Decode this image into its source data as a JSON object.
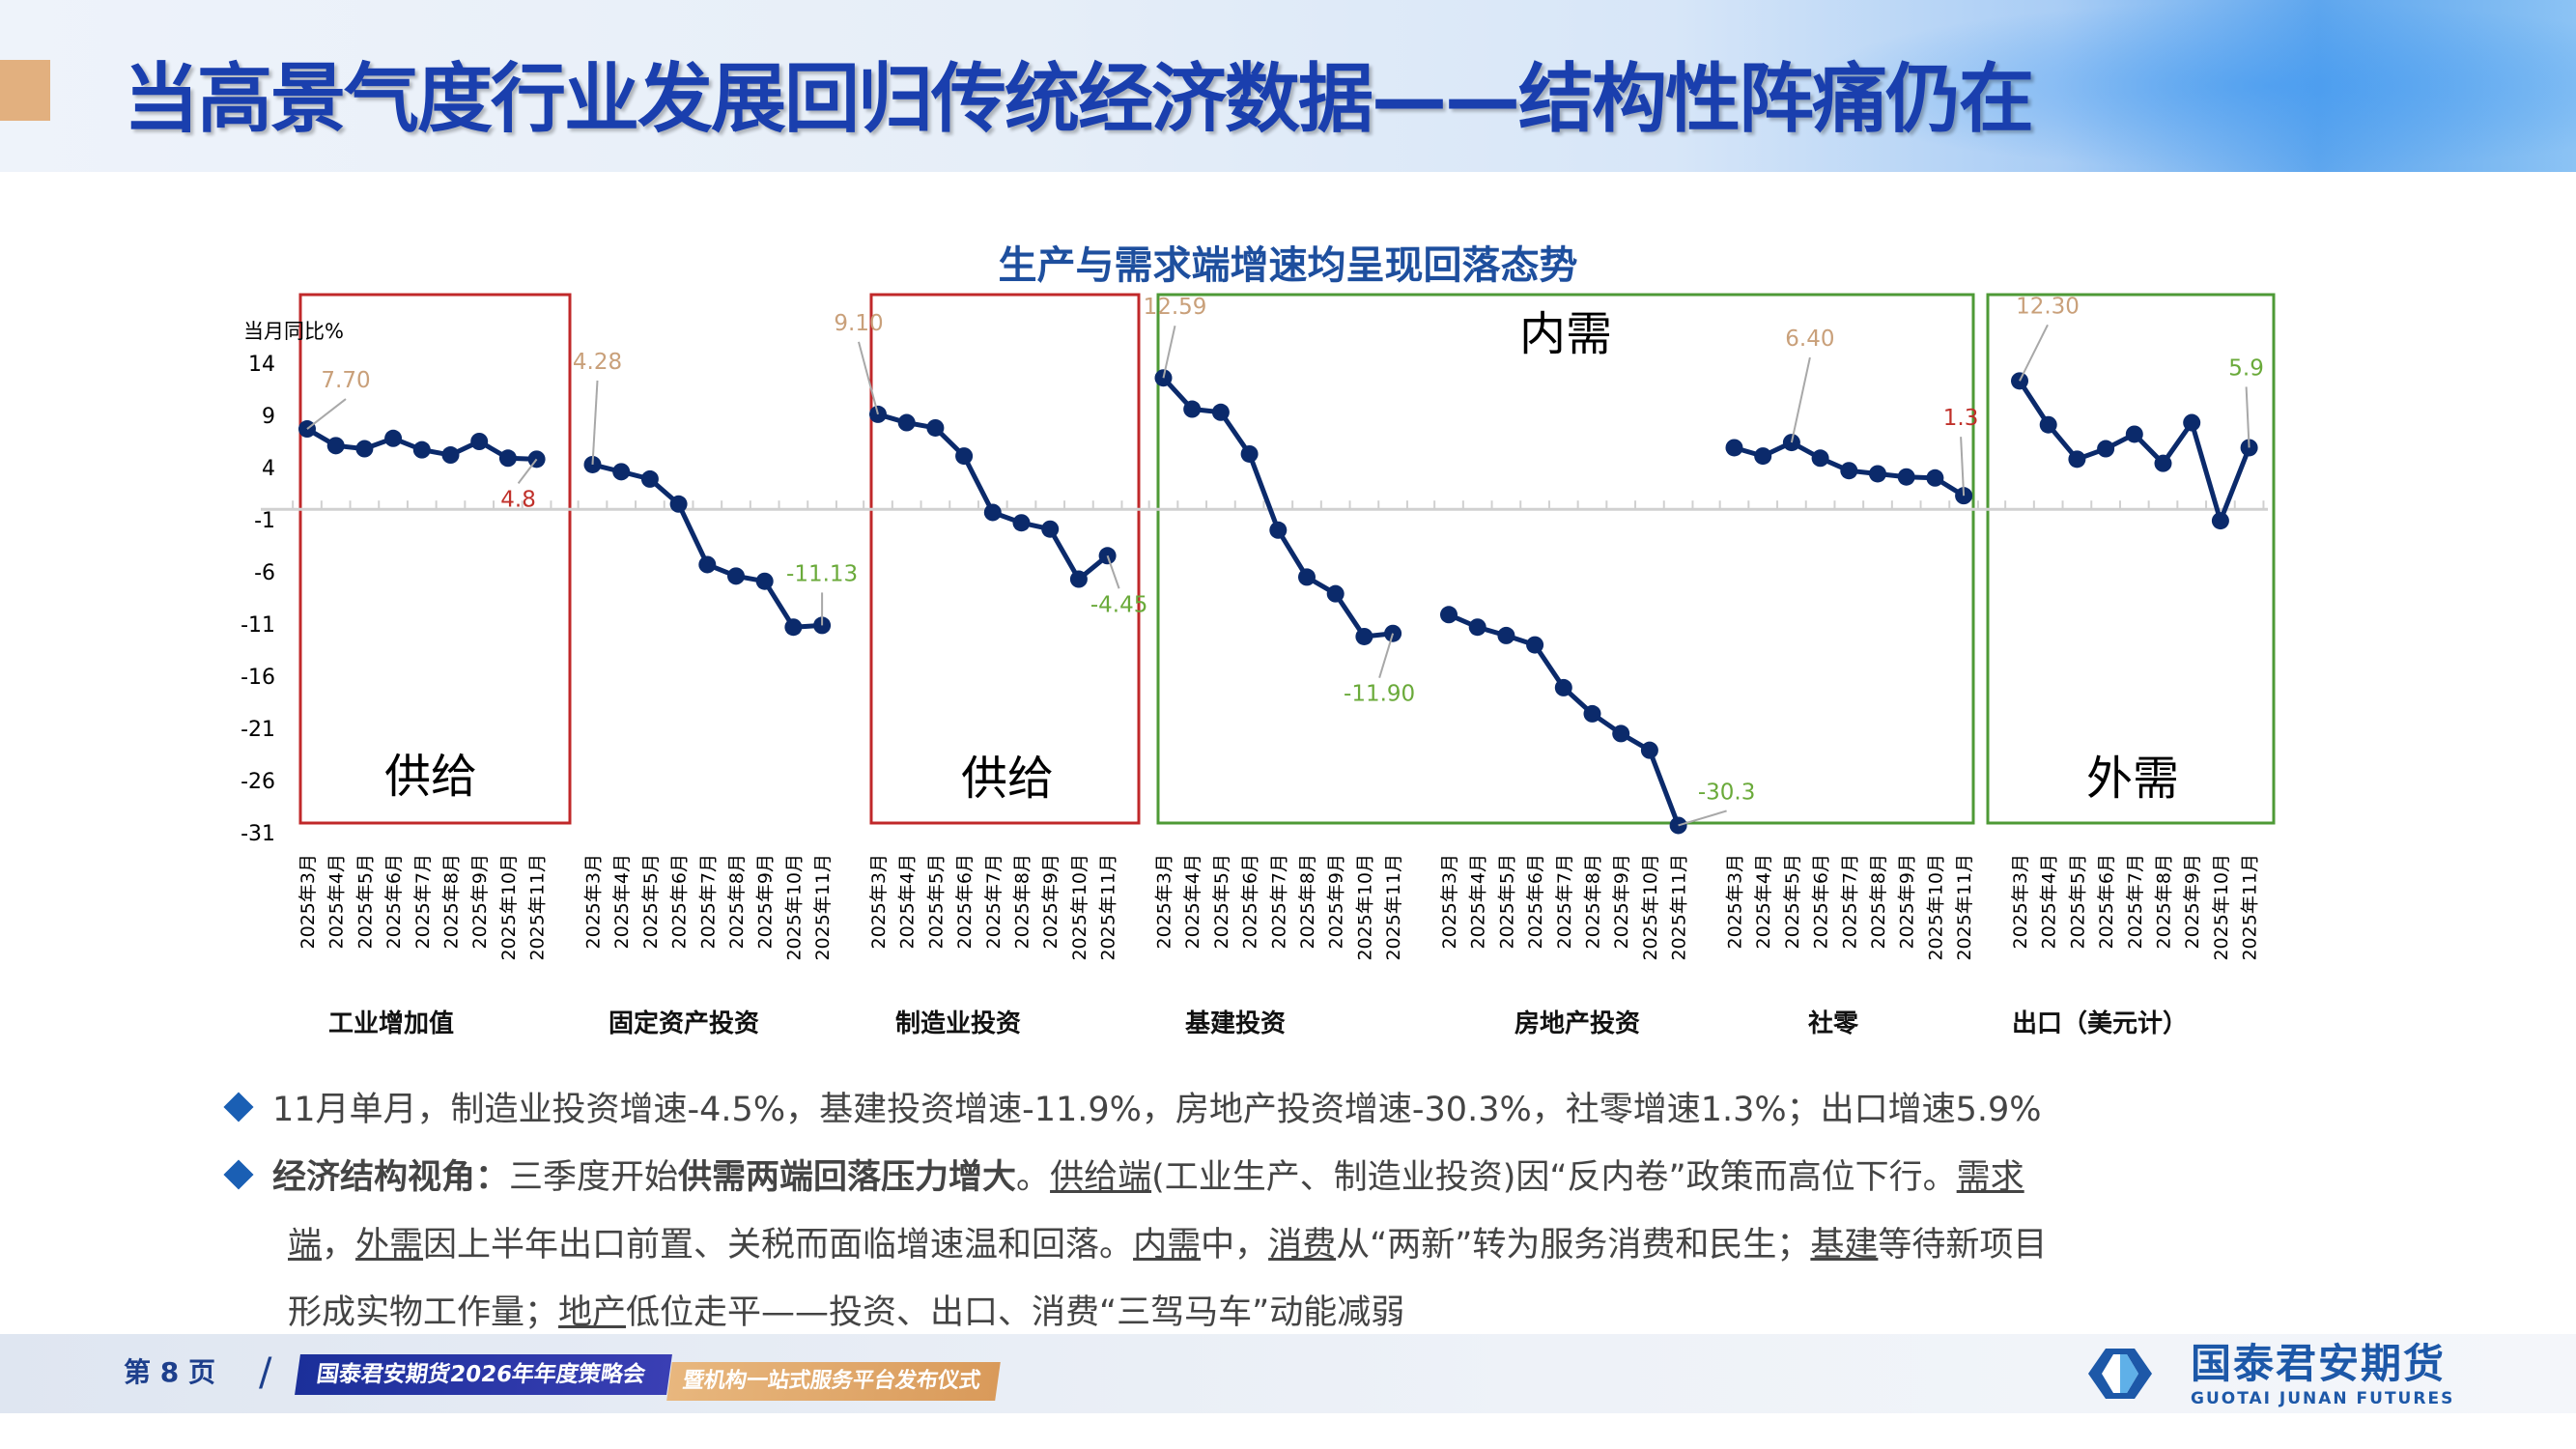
{
  "header": {
    "title": "当高景气度行业发展回归传统经济数据——结构性阵痛仍在"
  },
  "colors": {
    "title_blue": "#1a3fae",
    "accent_orange": "#e2b07f",
    "line_navy": "#0b2a6b",
    "box_red": "#c0282a",
    "box_green": "#4e9a36",
    "label_tan": "#c9a07a",
    "label_red": "#c0302a",
    "label_green": "#6aaa3a",
    "chart_title": "#1e4f9e",
    "bullet_blue": "#1a5fb4"
  },
  "chart_data": {
    "type": "line",
    "title": "生产与需求端增速均呈现回落态势",
    "ylabel": "当月同比%",
    "ylim": [
      -31,
      14
    ],
    "yticks": [
      14,
      9,
      4,
      -1,
      -6,
      -11,
      -16,
      -21,
      -26,
      -31
    ],
    "grid": false,
    "months": [
      "2025年3月",
      "2025年4月",
      "2025年5月",
      "2025年6月",
      "2025年7月",
      "2025年8月",
      "2025年9月",
      "2025年10月",
      "2025年11月"
    ],
    "series": [
      {
        "name": "工业增加值",
        "values": [
          7.7,
          6.1,
          5.8,
          6.8,
          5.7,
          5.2,
          6.5,
          4.9,
          4.8
        ]
      },
      {
        "name": "固定资产投资",
        "values": [
          4.28,
          3.6,
          2.9,
          0.5,
          -5.3,
          -6.4,
          -6.9,
          -11.3,
          -11.13
        ]
      },
      {
        "name": "制造业投资",
        "values": [
          9.1,
          8.3,
          7.8,
          5.1,
          -0.3,
          -1.3,
          -1.9,
          -6.7,
          -4.45
        ]
      },
      {
        "name": "基建投资",
        "values": [
          12.59,
          9.6,
          9.3,
          5.3,
          -2.0,
          -6.5,
          -8.1,
          -12.2,
          -11.9
        ]
      },
      {
        "name": "房地产投资",
        "values": [
          -10.1,
          -11.3,
          -12.1,
          -13.0,
          -17.1,
          -19.6,
          -21.5,
          -23.1,
          -30.3
        ]
      },
      {
        "name": "社零",
        "values": [
          5.9,
          5.1,
          6.4,
          4.9,
          3.7,
          3.4,
          3.1,
          3.0,
          1.3
        ]
      },
      {
        "name": "出口（美元计）",
        "values": [
          12.3,
          8.1,
          4.8,
          5.8,
          7.2,
          4.4,
          8.3,
          -1.1,
          5.9
        ]
      }
    ],
    "annotations": [
      {
        "series": 0,
        "point": 0,
        "text": "7.70",
        "color": "tan"
      },
      {
        "series": 0,
        "point": 8,
        "text": "4.8",
        "color": "red"
      },
      {
        "series": 1,
        "point": 0,
        "text": "4.28",
        "color": "tan"
      },
      {
        "series": 1,
        "point": 8,
        "text": "-11.13",
        "color": "green"
      },
      {
        "series": 2,
        "point": 0,
        "text": "9.10",
        "color": "tan"
      },
      {
        "series": 2,
        "point": 8,
        "text": "-4.45",
        "color": "green"
      },
      {
        "series": 3,
        "point": 0,
        "text": "12.59",
        "color": "tan"
      },
      {
        "series": 3,
        "point": 8,
        "text": "-11.90",
        "color": "green"
      },
      {
        "series": 4,
        "point": 8,
        "text": "-30.3",
        "color": "green"
      },
      {
        "series": 5,
        "point": 2,
        "text": "6.40",
        "color": "tan"
      },
      {
        "series": 5,
        "point": 8,
        "text": "1.3",
        "color": "red"
      },
      {
        "series": 6,
        "point": 0,
        "text": "12.30",
        "color": "tan"
      },
      {
        "series": 6,
        "point": 8,
        "text": "5.9",
        "color": "green"
      }
    ],
    "group_boxes": [
      {
        "label": "供给",
        "series": [
          0
        ],
        "color": "red"
      },
      {
        "label": "供给",
        "series": [
          2
        ],
        "color": "red"
      },
      {
        "label": "内需",
        "series": [
          3,
          4,
          5
        ],
        "color": "green"
      },
      {
        "label": "外需",
        "series": [
          6
        ],
        "color": "green"
      }
    ]
  },
  "bullets": {
    "b1": "11月单月，制造业投资增速-4.5%，基建投资增速-11.9%，房地产投资增速-30.3%，社零增速1.3%；出口增速5.9%",
    "b2": {
      "t1": "经济结构视角：",
      "t2": "三季度开始",
      "t3": "供需两端回落压力增大",
      "t4": "。",
      "t5": "供给端",
      "t6": "(工业生产、制造业投资)因“反内卷”政策而高位下行。",
      "t7": "需求"
    },
    "l2": {
      "t1": "端",
      "t2": "，",
      "t3": "外需",
      "t4": "因上半年出口前置、关税而面临增速温和回落。",
      "t5": "内需",
      "t6": "中，",
      "t7": "消费",
      "t8": "从“两新”转为服务消费和民生；",
      "t9": "基建",
      "t10": "等待新项目"
    },
    "l3": {
      "t1": "形成实物工作量；",
      "t2": "地产",
      "t3": "低位走平——投资、出口、消费“三驾马车”动能减弱"
    }
  },
  "footer": {
    "page": "第 8 页",
    "banner_main": "国泰君安期货2026年年度策略会",
    "banner_sub": "暨机构一站式服务平台发布仪式",
    "logo_cn": "国泰君安期货",
    "logo_en": "GUOTAI JUNAN FUTURES"
  }
}
